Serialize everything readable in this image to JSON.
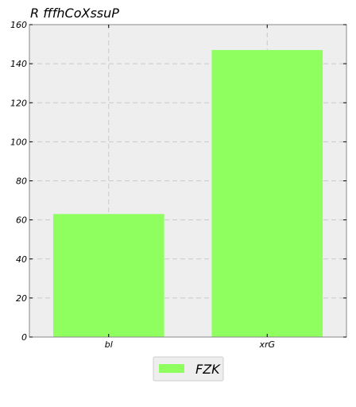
{
  "chart_data": {
    "type": "bar",
    "title": "R fffhCoXssuP",
    "categories": [
      "bl",
      "xrG"
    ],
    "series": [
      {
        "name": "FZK",
        "values": [
          63,
          147
        ]
      }
    ],
    "xlabel": "",
    "ylabel": "",
    "ylim": [
      0,
      160
    ],
    "yticks": [
      0,
      20,
      40,
      60,
      80,
      100,
      120,
      140,
      160
    ],
    "grid": true,
    "legend_position": "bottom-center"
  },
  "colors": {
    "background": "#ffffff",
    "plot_background": "#eeeeee",
    "bar": "#8eff5e",
    "grid": "#c9c9c9",
    "axis": "#888888",
    "text": "#000000",
    "legend_border": "#cccccc",
    "legend_background": "#eeeeee"
  }
}
